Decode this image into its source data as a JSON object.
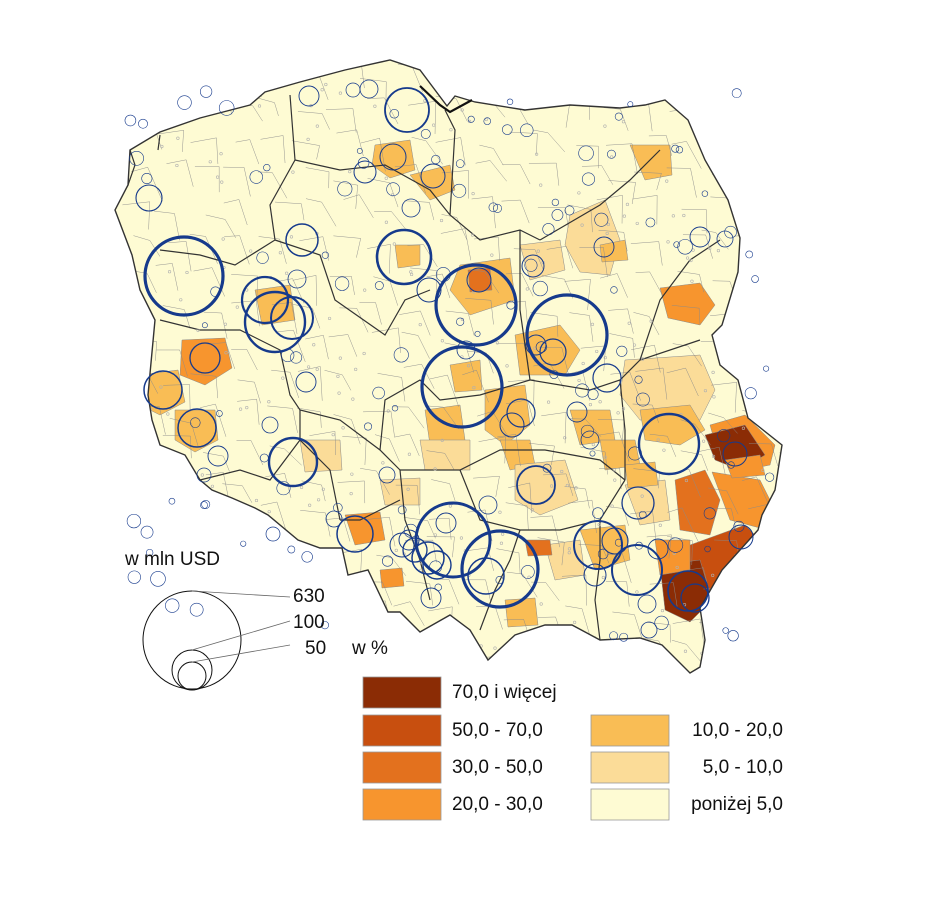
{
  "colors": {
    "outline": "#333333",
    "district_border": "#8a8a8a",
    "circle": "#163a8c",
    "dot": "#b0b0b0",
    "class_70_plus": "#8b2c05",
    "class_50_70": "#c84f0f",
    "class_30_50": "#e3711e",
    "class_20_30": "#f7952e",
    "class_10_20": "#f9bd55",
    "class_5_10": "#fbdc98",
    "class_below_5": "#fefbd3"
  },
  "circle_legend": {
    "title": "w mln USD",
    "values": [
      {
        "label": "630",
        "value": 630
      },
      {
        "label": "100",
        "value": 100
      },
      {
        "label": "50",
        "value": 50
      }
    ]
  },
  "choropleth_legend": {
    "title": "w %",
    "classes": [
      {
        "label": "70,0 i więcej",
        "color_key": "class_70_plus"
      },
      {
        "label": "50,0 - 70,0",
        "color_key": "class_50_70"
      },
      {
        "label": "30,0 - 50,0",
        "color_key": "class_30_50"
      },
      {
        "label": "20,0 - 30,0",
        "color_key": "class_20_30"
      },
      {
        "label": "10,0 - 20,0",
        "color_key": "class_10_20"
      },
      {
        "label": "5,0 - 10,0",
        "color_key": "class_5_10"
      },
      {
        "label": "poniżej 5,0",
        "color_key": "class_below_5"
      }
    ]
  }
}
